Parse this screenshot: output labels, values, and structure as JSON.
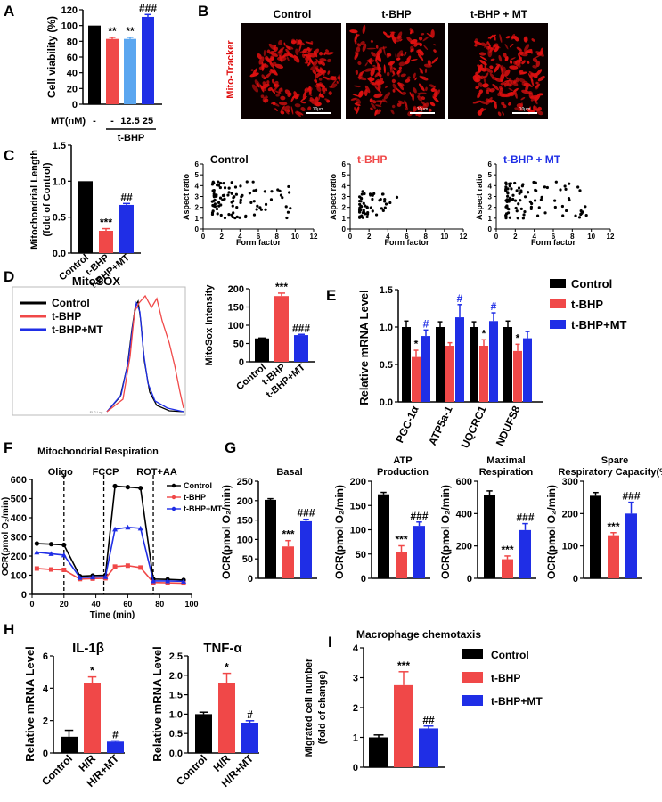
{
  "colors": {
    "black": "#000000",
    "red": "#f04848",
    "lightblue": "#5aa6f0",
    "blue": "#1f2ee6",
    "micro_bg": "#0a0000",
    "micro_red": "#e01010"
  },
  "panel_labels": {
    "A": "A",
    "B": "B",
    "C": "C",
    "D": "D",
    "E": "E",
    "F": "F",
    "G": "G",
    "H": "H",
    "I": "I"
  },
  "chart_data": [
    {
      "id": "A",
      "type": "bar",
      "ylabel": "Cell viability (%)",
      "ylim": [
        0,
        120
      ],
      "yticks": [
        "0",
        "20",
        "40",
        "60",
        "80",
        "100",
        "120"
      ],
      "xrow_label": "MT(nM)",
      "categories": [
        "-",
        "-",
        "12.5",
        "25"
      ],
      "group_label": "t-BHP",
      "values": [
        100,
        83,
        83,
        111
      ],
      "errors": [
        0,
        2,
        2,
        3
      ],
      "annotations": [
        "",
        "**",
        "**",
        "###"
      ]
    },
    {
      "id": "C",
      "type": "bar",
      "ylabel": "Mitochondrial Length",
      "ylabel2": "(fold of Control)",
      "ylim": [
        0,
        1.5
      ],
      "yticks": [
        "0.0",
        "0.5",
        "1.0",
        "1.5"
      ],
      "categories": [
        "Control",
        "t-BHP",
        "t-BHP+MT"
      ],
      "values": [
        1.0,
        0.31,
        0.67
      ],
      "errors": [
        0,
        0.03,
        0.02
      ],
      "annotations": [
        "",
        "***",
        "##"
      ]
    },
    {
      "id": "C-scatter",
      "type": "scatter",
      "xlabel": "Form factor",
      "ylabel": "Aspect ratio",
      "xticks": [
        "0",
        "2",
        "4",
        "6",
        "8",
        "10",
        "12"
      ],
      "yticks": [
        "0",
        "1",
        "2",
        "3",
        "4",
        "5",
        "6"
      ],
      "titles": [
        "Control",
        "t-BHP",
        "t-BHP + MT"
      ]
    },
    {
      "id": "D-hist",
      "type": "line",
      "title": "MitoSOX",
      "xlabel": "FL2 Log",
      "legend": [
        "Control",
        "t-BHP",
        "t-BHP+MT"
      ]
    },
    {
      "id": "D",
      "type": "bar",
      "ylabel": "MitoSox Intensity",
      "ylim": [
        0,
        200
      ],
      "yticks": [
        "0",
        "50",
        "100",
        "150",
        "200"
      ],
      "categories": [
        "Control",
        "t-BHP",
        "t-BHP+MT"
      ],
      "values": [
        64,
        180,
        73
      ],
      "errors": [
        1,
        8,
        2
      ],
      "annotations": [
        "",
        "***",
        "###"
      ]
    },
    {
      "id": "E",
      "type": "bar",
      "ylabel": "Relative mRNA Level",
      "ylim": [
        0,
        1.5
      ],
      "yticks": [
        "0.0",
        "0.5",
        "1.0",
        "1.5"
      ],
      "categories": [
        "PGC-1α",
        "ATP5a-1",
        "UQCRC1",
        "NDUFS8"
      ],
      "legend": [
        "Control",
        "t-BHP",
        "t-BHP+MT"
      ],
      "series": [
        {
          "name": "Control",
          "values": [
            1.0,
            1.0,
            1.0,
            1.0
          ],
          "errors": [
            0.08,
            0.07,
            0.07,
            0.08
          ],
          "annotations": [
            "",
            "",
            "",
            ""
          ]
        },
        {
          "name": "t-BHP",
          "values": [
            0.6,
            0.75,
            0.75,
            0.68
          ],
          "errors": [
            0.09,
            0.04,
            0.08,
            0.09
          ],
          "annotations": [
            "*",
            "",
            "*",
            "*"
          ]
        },
        {
          "name": "t-BHP+MT",
          "values": [
            0.88,
            1.13,
            1.08,
            0.85
          ],
          "errors": [
            0.08,
            0.17,
            0.11,
            0.09
          ],
          "annotations": [
            "#",
            "#",
            "#",
            ""
          ]
        }
      ]
    },
    {
      "id": "F",
      "type": "line",
      "title": "Mitochondrial Respiration",
      "xlabel": "Time (min)",
      "ylabel": "OCR(pmol O₂/min)",
      "xlim": [
        0,
        100
      ],
      "ylim": [
        0,
        600
      ],
      "xticks": [
        "0",
        "20",
        "40",
        "60",
        "80",
        "100"
      ],
      "yticks": [
        "0",
        "100",
        "200",
        "300",
        "400",
        "500",
        "600"
      ],
      "injections": [
        "Oligo",
        "FCCP",
        "ROT+AA"
      ],
      "x": [
        3,
        12,
        20,
        30,
        38,
        46,
        52,
        60,
        68,
        76,
        85,
        95
      ],
      "legend": [
        "Control",
        "t-BHP",
        "t-BHP+MT"
      ],
      "series": [
        {
          "name": "Control",
          "values": [
            265,
            262,
            258,
            95,
            98,
            100,
            565,
            560,
            555,
            80,
            78,
            75
          ]
        },
        {
          "name": "t-BHP",
          "values": [
            135,
            130,
            128,
            80,
            82,
            84,
            145,
            150,
            140,
            62,
            60,
            58
          ]
        },
        {
          "name": "t-BHP+MT",
          "values": [
            220,
            212,
            205,
            88,
            90,
            92,
            340,
            350,
            345,
            70,
            70,
            68
          ]
        }
      ]
    },
    {
      "id": "G1",
      "type": "bar",
      "title": "Basal",
      "ylabel": "OCR(pmol O₂/min)",
      "ylim": [
        0,
        250
      ],
      "yticks": [
        "0",
        "50",
        "100",
        "150",
        "200",
        "250"
      ],
      "values": [
        202,
        82,
        147
      ],
      "errors": [
        3,
        15,
        5
      ],
      "annotations": [
        "",
        "***",
        "###"
      ]
    },
    {
      "id": "G2",
      "type": "bar",
      "title": "ATP",
      "title2": "Production",
      "ylabel": "OCR(pmol O₂/min)",
      "ylim": [
        0,
        200
      ],
      "yticks": [
        "0",
        "50",
        "100",
        "150",
        "200"
      ],
      "values": [
        173,
        55,
        108
      ],
      "errors": [
        4,
        12,
        8
      ],
      "annotations": [
        "",
        "***",
        "###"
      ]
    },
    {
      "id": "G3",
      "type": "bar",
      "title": "Maximal",
      "title2": "Respiration",
      "ylabel": "OCR(pmol O₂/min)",
      "ylim": [
        0,
        600
      ],
      "yticks": [
        "0",
        "200",
        "400",
        "600"
      ],
      "values": [
        515,
        118,
        298
      ],
      "errors": [
        25,
        20,
        40
      ],
      "annotations": [
        "",
        "***",
        "###"
      ]
    },
    {
      "id": "G4",
      "type": "bar",
      "title": "Spare",
      "title2": "Respiratory Capacity(%)",
      "ylabel": "OCR(pmol O₂/min)",
      "ylim": [
        0,
        300
      ],
      "yticks": [
        "0",
        "100",
        "200",
        "300"
      ],
      "values": [
        255,
        133,
        200
      ],
      "errors": [
        10,
        8,
        35
      ],
      "annotations": [
        "",
        "***",
        "###"
      ]
    },
    {
      "id": "H1",
      "type": "bar",
      "title": "IL-1β",
      "ylabel": "Relative mRNA Level",
      "ylim": [
        0,
        6
      ],
      "yticks": [
        "0",
        "2",
        "4",
        "6"
      ],
      "categories": [
        "Control",
        "H/R",
        "H/R+MT"
      ],
      "values": [
        1.0,
        4.3,
        0.7
      ],
      "errors": [
        0.4,
        0.4,
        0.05
      ],
      "annotations": [
        "",
        "*",
        "#"
      ]
    },
    {
      "id": "H2",
      "type": "bar",
      "title": "TNF-α",
      "ylabel": "Relative mRNA Level",
      "ylim": [
        0,
        2.5
      ],
      "yticks": [
        "0.0",
        "0.5",
        "1.0",
        "1.5",
        "2.0",
        "2.5"
      ],
      "categories": [
        "Control",
        "H/R",
        "H/R+MT"
      ],
      "values": [
        1.0,
        1.8,
        0.78
      ],
      "errors": [
        0.05,
        0.25,
        0.05
      ],
      "annotations": [
        "",
        "*",
        "#"
      ]
    },
    {
      "id": "I",
      "type": "bar",
      "title": "Macrophage chemotaxis",
      "ylabel": "Migrated cell number",
      "ylabel2": "(fold of change)",
      "ylim": [
        0,
        4
      ],
      "yticks": [
        "0",
        "1",
        "2",
        "3",
        "4"
      ],
      "legend": [
        "Control",
        "t-BHP",
        "t-BHP+MT"
      ],
      "values": [
        1.0,
        2.75,
        1.3
      ],
      "errors": [
        0.08,
        0.45,
        0.08
      ],
      "annotations": [
        "",
        "***",
        "##"
      ]
    }
  ],
  "micrographs": {
    "ylabel": "Mito-Tracker",
    "titles": [
      "Control",
      "t-BHP",
      "t-BHP + MT"
    ],
    "scale_labels": [
      "10μm",
      "10μm",
      "10μm"
    ]
  }
}
